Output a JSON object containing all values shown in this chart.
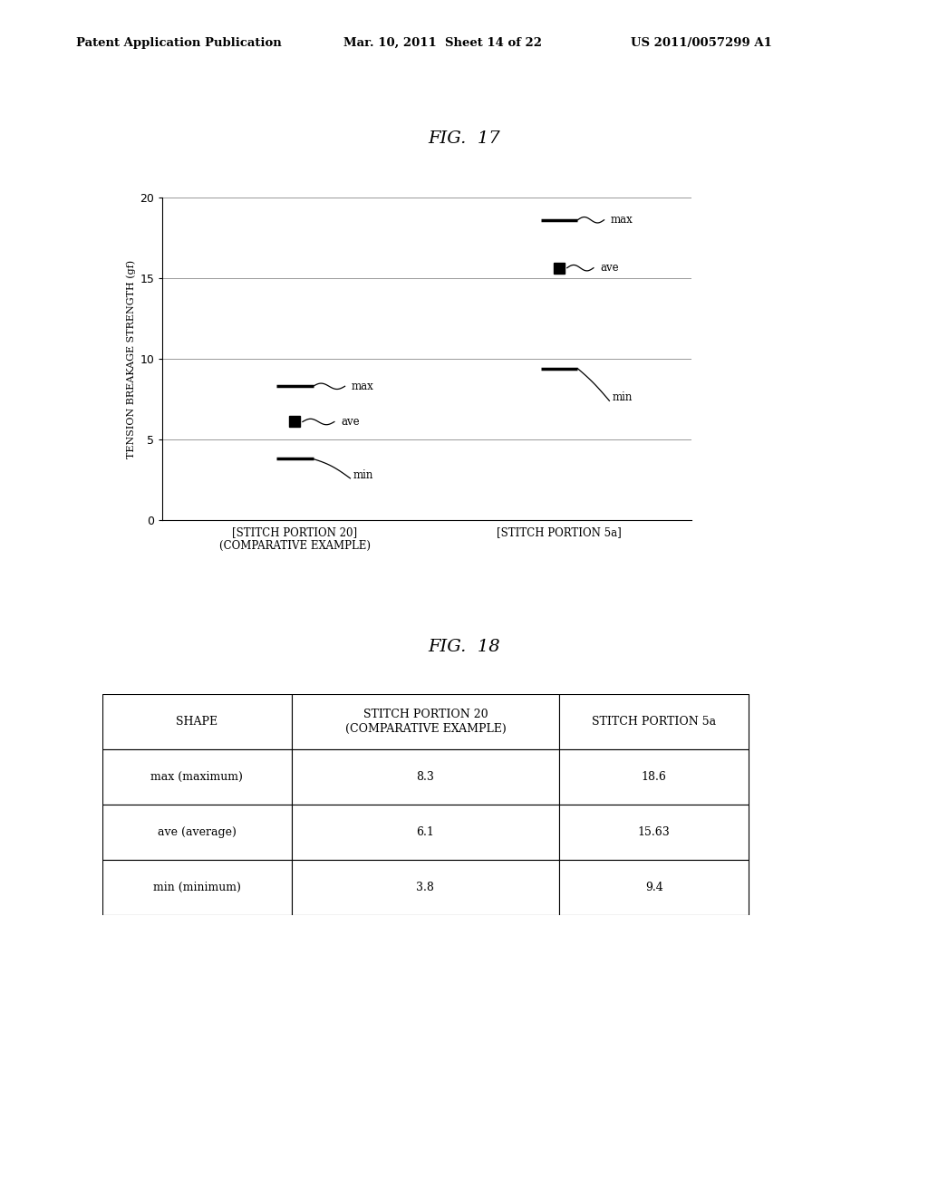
{
  "page_header_left": "Patent Application Publication",
  "page_header_mid": "Mar. 10, 2011  Sheet 14 of 22",
  "page_header_right": "US 2011/0057299 A1",
  "fig17_title": "FIG.  17",
  "fig18_title": "FIG.  18",
  "ylabel": "TENSION BREAKAGE STRENGTH (gf)",
  "ylim": [
    0,
    20
  ],
  "yticks": [
    0,
    5,
    10,
    15,
    20
  ],
  "cat1_label": "[STITCH PORTION 20]\n(COMPARATIVE EXAMPLE)",
  "cat2_label": "[STITCH PORTION 5a]",
  "max_values": [
    8.3,
    18.6
  ],
  "ave_values": [
    6.1,
    15.63
  ],
  "min_values": [
    3.8,
    9.4
  ],
  "table_col0_header": "SHAPE",
  "table_col1_header": "STITCH PORTION 20\n(COMPARATIVE EXAMPLE)",
  "table_col2_header": "STITCH PORTION 5a",
  "table_rows": [
    [
      "max (maximum)",
      "8.3",
      "18.6"
    ],
    [
      "ave (average)",
      "6.1",
      "15.63"
    ],
    [
      "min (minimum)",
      "3.8",
      "9.4"
    ]
  ],
  "bg_color": "#ffffff",
  "text_color": "#000000"
}
